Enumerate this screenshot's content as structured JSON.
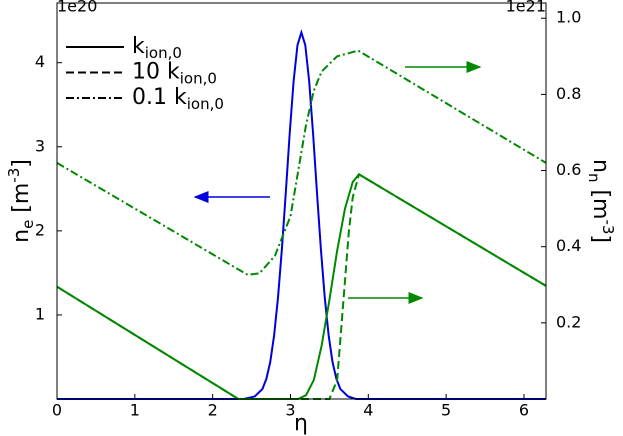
{
  "chart_data": {
    "type": "line",
    "x_label": "η",
    "y_label": {
      "text": "n",
      "sub": "e",
      "unit": " [m",
      "sup": "-3",
      "end": "]"
    },
    "y2_label": {
      "text": "n",
      "sub": "n",
      "unit": " [m",
      "sup": "-3",
      "end": "]"
    },
    "y_offset": "1e20",
    "y2_offset": "1e21",
    "xlim": [
      0,
      6.283
    ],
    "xticks": [
      0,
      1,
      2,
      3,
      4,
      5,
      6
    ],
    "ylim": [
      0,
      4.71
    ],
    "yticks": [
      1,
      2,
      3,
      4
    ],
    "y2lim": [
      0,
      1.04
    ],
    "y2ticks": [
      0.2,
      0.4,
      0.6,
      0.8,
      {
        "value": 1,
        "label": "1.0"
      }
    ],
    "legend_position": "upper left",
    "legend": [
      {
        "text": "k",
        "sub": "ion,0",
        "style": "solid"
      },
      {
        "text": "10 k",
        "sub": "ion,0",
        "style": "dashed"
      },
      {
        "text": "0.1 k",
        "sub": "ion,0",
        "style": "dashdot"
      }
    ],
    "series": [
      {
        "color": "#0000dd",
        "style": "solid",
        "axis": "y",
        "x": [
          0,
          2.4,
          2.54,
          2.64,
          2.69,
          2.74,
          2.79,
          2.84,
          2.89,
          2.94,
          2.99,
          3.04,
          3.09,
          3.14,
          3.19,
          3.24,
          3.29,
          3.34,
          3.39,
          3.44,
          3.49,
          3.54,
          3.59,
          3.64,
          3.74,
          3.84,
          6.283
        ],
        "values": [
          0,
          0,
          0.03,
          0.12,
          0.24,
          0.44,
          0.76,
          1.21,
          1.79,
          2.46,
          3.16,
          3.78,
          4.21,
          4.36,
          4.21,
          3.78,
          3.16,
          2.46,
          1.79,
          1.21,
          0.76,
          0.44,
          0.24,
          0.12,
          0.03,
          0,
          0
        ]
      },
      {
        "color": "#008800",
        "style": "solid",
        "axis": "y2",
        "x": [
          0,
          2.33,
          3.1,
          3.2,
          3.3,
          3.4,
          3.5,
          3.6,
          3.7,
          3.8,
          3.88,
          6.283
        ],
        "values": [
          0.295,
          0,
          0,
          0.01,
          0.05,
          0.14,
          0.26,
          0.39,
          0.5,
          0.57,
          0.59,
          0.297
        ]
      },
      {
        "color": "#008800",
        "style": "dashed",
        "axis": "y2",
        "x": [
          0,
          2.33,
          3.5,
          3.6,
          3.65,
          3.7,
          3.75,
          3.8,
          3.88,
          6.283
        ],
        "values": [
          0.295,
          0,
          0,
          0.05,
          0.18,
          0.31,
          0.44,
          0.53,
          0.59,
          0.297
        ]
      },
      {
        "color": "#008800",
        "style": "dashdot",
        "axis": "y2",
        "x": [
          0,
          2.45,
          2.6,
          2.8,
          3.0,
          3.1,
          3.2,
          3.3,
          3.4,
          3.6,
          3.87,
          6.283
        ],
        "values": [
          0.62,
          0.326,
          0.33,
          0.376,
          0.48,
          0.6,
          0.72,
          0.81,
          0.86,
          0.9,
          0.915,
          0.62
        ]
      }
    ]
  }
}
